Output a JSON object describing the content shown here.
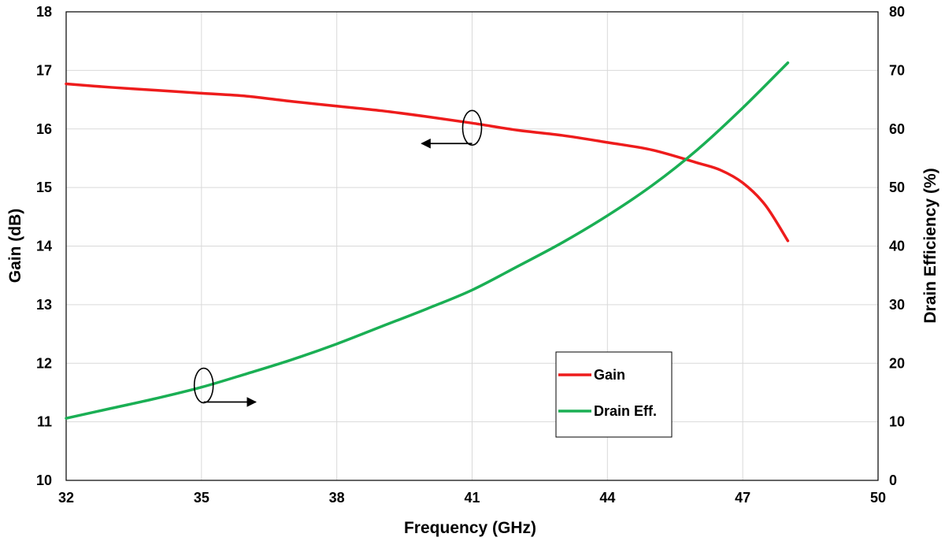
{
  "chart_data": {
    "type": "line",
    "xlabel": "Frequency (GHz)",
    "ylabel": "Gain (dB)",
    "y2label": "Drain Efficiency (%)",
    "xlim": [
      32,
      50
    ],
    "ylim": [
      10,
      18
    ],
    "y2lim": [
      0,
      80
    ],
    "xticks": [
      "32",
      "35",
      "38",
      "41",
      "44",
      "47",
      "50"
    ],
    "yticks": [
      "10",
      "11",
      "12",
      "13",
      "14",
      "15",
      "16",
      "17",
      "18"
    ],
    "y2ticks": [
      "0",
      "10",
      "20",
      "30",
      "40",
      "50",
      "60",
      "70",
      "80"
    ],
    "grid": true,
    "legend_position": "lower-right inside plot",
    "series": [
      {
        "name": "Gain",
        "axis": "left",
        "color": "#ee1c1c",
        "x": [
          32,
          33,
          34,
          35,
          36,
          37,
          38,
          39,
          40,
          41,
          42,
          43,
          44,
          45,
          46,
          46.5,
          47,
          47.5,
          48
        ],
        "y": [
          16.77,
          16.71,
          16.66,
          16.61,
          16.56,
          16.47,
          16.39,
          16.31,
          16.21,
          16.1,
          15.98,
          15.89,
          15.77,
          15.64,
          15.42,
          15.3,
          15.08,
          14.7,
          14.09
        ]
      },
      {
        "name": "Drain Eff.",
        "axis": "right",
        "color": "#1aaf54",
        "x": [
          32,
          33,
          34,
          35,
          36,
          37,
          38,
          39,
          40,
          41,
          42,
          43,
          44,
          45,
          46,
          47,
          48
        ],
        "y": [
          10.6,
          12.3,
          14.0,
          15.9,
          18.2,
          20.6,
          23.3,
          26.3,
          29.3,
          32.5,
          36.5,
          40.6,
          45.2,
          50.4,
          56.5,
          63.6,
          71.3
        ]
      }
    ]
  }
}
